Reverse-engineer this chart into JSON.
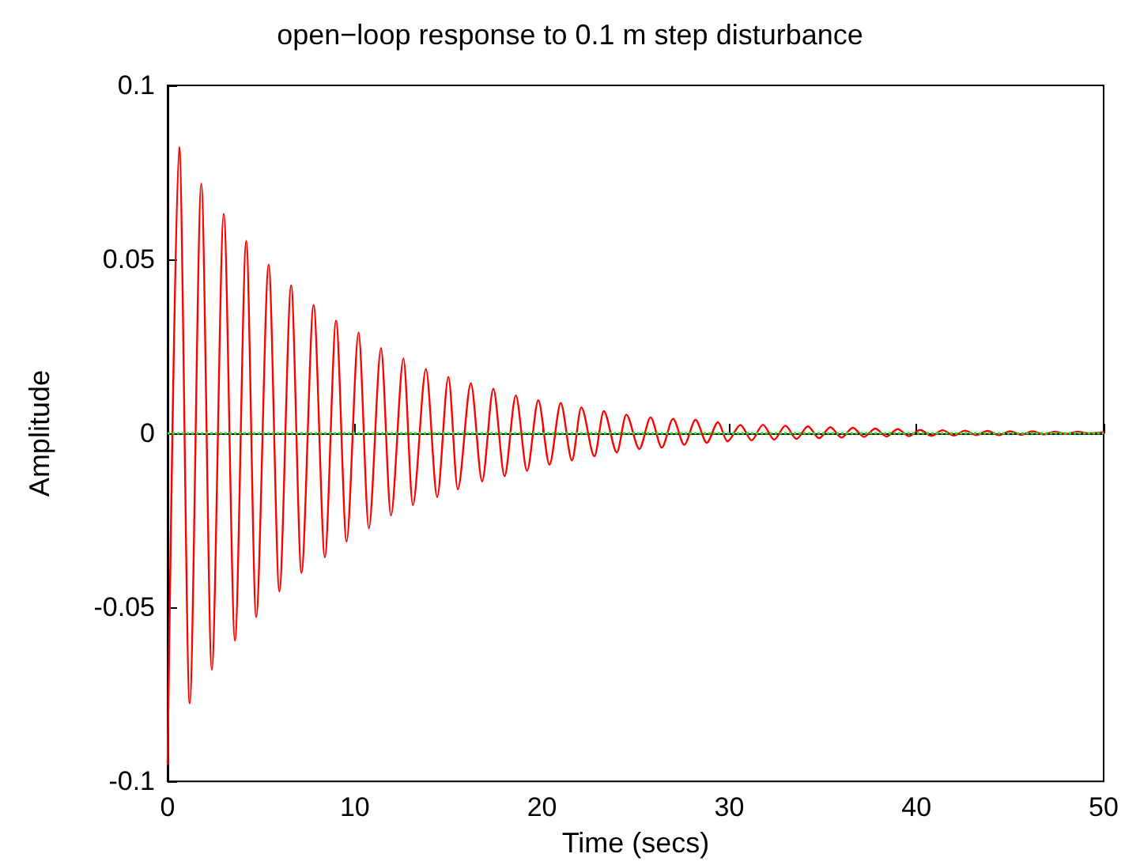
{
  "chart_data": {
    "type": "line",
    "title": "open−loop response to 0.1 m step disturbance",
    "xlabel": "Time (secs)",
    "ylabel": "Amplitude",
    "x": [
      0,
      0.62,
      1.18,
      1.8,
      2.36,
      3.0,
      3.6,
      4.2,
      4.73,
      5.4,
      5.97,
      6.6,
      7.15,
      7.8,
      8.4,
      9.0,
      9.56,
      10.2,
      10.75,
      11.4,
      11.93,
      12.6,
      13.1,
      13.8,
      14.4,
      15.0,
      15.5,
      16.2,
      16.8,
      17.4,
      18.0,
      18.6,
      19.2,
      19.8,
      20.4,
      21.0,
      21.6,
      22.1,
      22.8,
      23.3,
      24.0,
      24.5,
      25.2,
      25.8,
      26.4,
      27.0,
      27.6,
      28.2,
      28.8,
      29.4,
      29.9,
      30.6,
      31.2,
      31.8,
      32.4,
      33.0,
      33.6,
      34.2,
      34.8,
      35.4,
      36.0,
      36.6,
      37.2,
      37.8,
      38.4,
      39.0,
      39.6,
      40.2,
      40.8,
      41.4,
      42.0,
      42.6,
      43.2,
      43.8,
      44.4,
      45.0,
      45.6,
      46.2,
      46.8,
      47.4,
      48.0,
      48.6,
      49.2,
      50
    ],
    "series": [
      {
        "color": "#ff0000",
        "values": [
          -0.095,
          0.0823,
          -0.0776,
          0.0718,
          -0.0679,
          0.0631,
          -0.0596,
          0.0553,
          -0.0528,
          0.0485,
          -0.0454,
          0.0425,
          -0.0401,
          0.0369,
          -0.0356,
          0.0324,
          -0.0311,
          0.029,
          -0.0273,
          0.0245,
          -0.0236,
          0.0215,
          -0.0206,
          0.0185,
          -0.0183,
          0.0162,
          -0.0161,
          0.0144,
          -0.0138,
          0.0128,
          -0.0123,
          0.0109,
          -0.0108,
          0.0095,
          -0.009,
          0.0087,
          -0.0078,
          0.0075,
          -0.0066,
          0.0064,
          -0.0055,
          0.0054,
          -0.0045,
          0.0046,
          -0.0041,
          0.0042,
          -0.0033,
          0.0039,
          -0.0027,
          0.0032,
          -0.0023,
          0.0024,
          -0.002,
          0.0025,
          -0.0018,
          0.0022,
          -0.0016,
          0.002,
          -0.0014,
          0.0018,
          -0.0012,
          0.0016,
          -0.001,
          0.0014,
          -0.0009,
          0.0012,
          -0.0008,
          0.001,
          -0.0007,
          0.0009,
          -0.0006,
          0.0008,
          -0.0005,
          0.0007,
          -0.0005,
          0.0006,
          -0.0004,
          0.0006,
          -0.0003,
          0.0005,
          -0.0002,
          0.0005,
          0.0,
          0.0003
        ]
      }
    ],
    "xlim": [
      0,
      50
    ],
    "xticks": [
      0,
      10,
      20,
      30,
      40,
      50
    ],
    "ylim": [
      -0.1,
      0.1
    ],
    "yticks": [
      -0.1,
      -0.05,
      0,
      0.05,
      0.1
    ],
    "ref_lines": [
      {
        "axis": "y",
        "value": 0,
        "color": "#33dd33",
        "line_style": "dotted"
      }
    ],
    "marker": "none",
    "line_style": "solid"
  }
}
